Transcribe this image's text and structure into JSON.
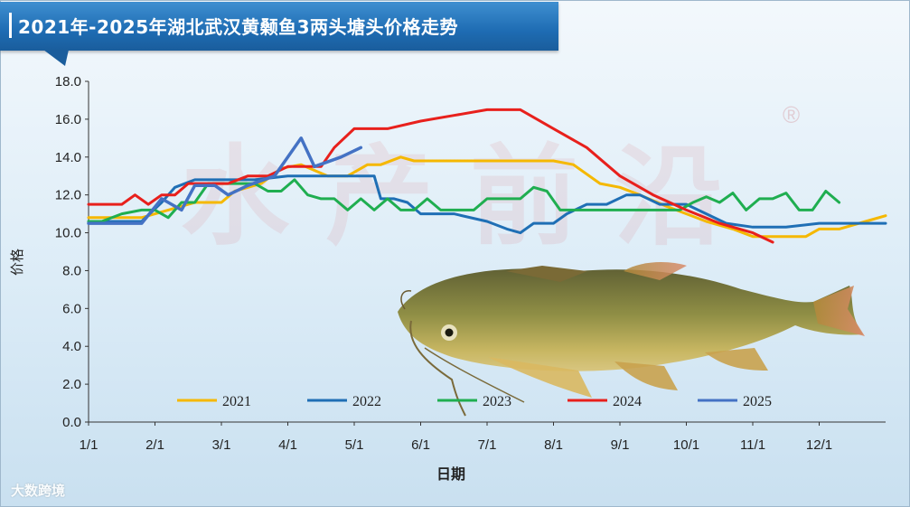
{
  "title": "2021年-2025年湖北武汉黄颡鱼3两头塘头价格走势",
  "watermark": {
    "text": "水产前沿",
    "mark": "®"
  },
  "footer_logo": "大数跨境",
  "chart_data": {
    "type": "line",
    "xlabel": "日期",
    "ylabel": "价格",
    "ylim": [
      0,
      18
    ],
    "yticks": [
      "0.0",
      "2.0",
      "4.0",
      "6.0",
      "8.0",
      "10.0",
      "12.0",
      "14.0",
      "16.0",
      "18.0"
    ],
    "xlim": [
      0,
      12
    ],
    "xticks": [
      "1/1",
      "2/1",
      "3/1",
      "4/1",
      "5/1",
      "6/1",
      "7/1",
      "8/1",
      "9/1",
      "10/1",
      "11/1",
      "12/1"
    ],
    "legend_position": "bottom",
    "grid": false,
    "series": [
      {
        "name": "2021",
        "color": "#f5b800",
        "points": [
          [
            0,
            10.8
          ],
          [
            0.4,
            10.8
          ],
          [
            0.8,
            10.8
          ],
          [
            1.2,
            11.2
          ],
          [
            1.6,
            11.6
          ],
          [
            2.0,
            11.6
          ],
          [
            2.2,
            12.2
          ],
          [
            2.6,
            12.6
          ],
          [
            2.9,
            13.4
          ],
          [
            3.2,
            13.6
          ],
          [
            3.6,
            13.0
          ],
          [
            3.9,
            13.0
          ],
          [
            4.2,
            13.6
          ],
          [
            4.4,
            13.6
          ],
          [
            4.7,
            14.0
          ],
          [
            4.9,
            13.8
          ],
          [
            5.5,
            13.8
          ],
          [
            6.0,
            13.8
          ],
          [
            6.5,
            13.8
          ],
          [
            7.0,
            13.8
          ],
          [
            7.3,
            13.6
          ],
          [
            7.7,
            12.6
          ],
          [
            8.0,
            12.4
          ],
          [
            8.3,
            12.0
          ],
          [
            8.7,
            11.4
          ],
          [
            9.0,
            11.0
          ],
          [
            9.3,
            10.6
          ],
          [
            9.7,
            10.2
          ],
          [
            10.0,
            9.8
          ],
          [
            10.5,
            9.8
          ],
          [
            10.8,
            9.8
          ],
          [
            11.0,
            10.2
          ],
          [
            11.3,
            10.2
          ],
          [
            11.7,
            10.6
          ],
          [
            12.0,
            10.9
          ]
        ]
      },
      {
        "name": "2022",
        "color": "#1f6fb5",
        "points": [
          [
            0,
            10.6
          ],
          [
            0.3,
            10.6
          ],
          [
            0.8,
            10.6
          ],
          [
            1.1,
            11.6
          ],
          [
            1.3,
            12.4
          ],
          [
            1.6,
            12.8
          ],
          [
            2.0,
            12.8
          ],
          [
            2.5,
            12.8
          ],
          [
            3.0,
            13.0
          ],
          [
            3.5,
            13.0
          ],
          [
            4.0,
            13.0
          ],
          [
            4.3,
            13.0
          ],
          [
            4.4,
            11.8
          ],
          [
            4.6,
            11.8
          ],
          [
            4.8,
            11.6
          ],
          [
            5.0,
            11.0
          ],
          [
            5.5,
            11.0
          ],
          [
            6.0,
            10.6
          ],
          [
            6.3,
            10.2
          ],
          [
            6.5,
            10.0
          ],
          [
            6.7,
            10.5
          ],
          [
            7.0,
            10.5
          ],
          [
            7.2,
            11.0
          ],
          [
            7.5,
            11.5
          ],
          [
            7.8,
            11.5
          ],
          [
            8.1,
            12.0
          ],
          [
            8.3,
            12.0
          ],
          [
            8.6,
            11.5
          ],
          [
            9.0,
            11.5
          ],
          [
            9.3,
            11.0
          ],
          [
            9.6,
            10.5
          ],
          [
            10.0,
            10.3
          ],
          [
            10.5,
            10.3
          ],
          [
            11.0,
            10.5
          ],
          [
            11.5,
            10.5
          ],
          [
            12.0,
            10.5
          ]
        ]
      },
      {
        "name": "2023",
        "color": "#1fae50",
        "points": [
          [
            0,
            10.6
          ],
          [
            0.2,
            10.6
          ],
          [
            0.5,
            11.0
          ],
          [
            0.8,
            11.2
          ],
          [
            1.0,
            11.2
          ],
          [
            1.2,
            10.8
          ],
          [
            1.4,
            11.6
          ],
          [
            1.6,
            11.6
          ],
          [
            1.8,
            12.6
          ],
          [
            2.0,
            12.6
          ],
          [
            2.3,
            12.6
          ],
          [
            2.5,
            12.6
          ],
          [
            2.7,
            12.2
          ],
          [
            2.9,
            12.2
          ],
          [
            3.1,
            12.8
          ],
          [
            3.3,
            12.0
          ],
          [
            3.5,
            11.8
          ],
          [
            3.7,
            11.8
          ],
          [
            3.9,
            11.2
          ],
          [
            4.1,
            11.8
          ],
          [
            4.3,
            11.2
          ],
          [
            4.5,
            11.8
          ],
          [
            4.7,
            11.2
          ],
          [
            4.9,
            11.2
          ],
          [
            5.1,
            11.8
          ],
          [
            5.3,
            11.2
          ],
          [
            5.5,
            11.2
          ],
          [
            5.8,
            11.2
          ],
          [
            6.0,
            11.8
          ],
          [
            6.3,
            11.8
          ],
          [
            6.5,
            11.8
          ],
          [
            6.7,
            12.4
          ],
          [
            6.9,
            12.2
          ],
          [
            7.1,
            11.2
          ],
          [
            7.4,
            11.2
          ],
          [
            7.7,
            11.2
          ],
          [
            8.0,
            11.2
          ],
          [
            8.3,
            11.2
          ],
          [
            8.6,
            11.2
          ],
          [
            8.9,
            11.2
          ],
          [
            9.1,
            11.6
          ],
          [
            9.3,
            11.9
          ],
          [
            9.5,
            11.6
          ],
          [
            9.7,
            12.1
          ],
          [
            9.9,
            11.2
          ],
          [
            10.1,
            11.8
          ],
          [
            10.3,
            11.8
          ],
          [
            10.5,
            12.1
          ],
          [
            10.7,
            11.2
          ],
          [
            10.9,
            11.2
          ],
          [
            11.1,
            12.2
          ],
          [
            11.3,
            11.6
          ]
        ]
      },
      {
        "name": "2024",
        "color": "#e8201c",
        "points": [
          [
            0,
            11.5
          ],
          [
            0.5,
            11.5
          ],
          [
            0.7,
            12.0
          ],
          [
            0.9,
            11.5
          ],
          [
            1.1,
            12.0
          ],
          [
            1.3,
            12.0
          ],
          [
            1.5,
            12.6
          ],
          [
            1.8,
            12.6
          ],
          [
            2.1,
            12.6
          ],
          [
            2.4,
            13.0
          ],
          [
            2.7,
            13.0
          ],
          [
            3.0,
            13.5
          ],
          [
            3.5,
            13.5
          ],
          [
            3.7,
            14.5
          ],
          [
            4.0,
            15.5
          ],
          [
            4.5,
            15.5
          ],
          [
            5.0,
            15.9
          ],
          [
            5.5,
            16.2
          ],
          [
            6.0,
            16.5
          ],
          [
            6.5,
            16.5
          ],
          [
            7.0,
            15.5
          ],
          [
            7.5,
            14.5
          ],
          [
            8.0,
            13.0
          ],
          [
            8.5,
            12.0
          ],
          [
            9.0,
            11.2
          ],
          [
            9.5,
            10.5
          ],
          [
            10.0,
            10.0
          ],
          [
            10.3,
            9.5
          ]
        ]
      },
      {
        "name": "2025",
        "color": "#4472c4",
        "points": [
          [
            0,
            10.5
          ],
          [
            0.5,
            10.5
          ],
          [
            0.8,
            10.5
          ],
          [
            1.1,
            11.8
          ],
          [
            1.4,
            11.2
          ],
          [
            1.6,
            12.5
          ],
          [
            1.9,
            12.5
          ],
          [
            2.1,
            12.0
          ],
          [
            2.4,
            12.5
          ],
          [
            2.8,
            13.0
          ],
          [
            3.0,
            14.0
          ],
          [
            3.2,
            15.0
          ],
          [
            3.4,
            13.5
          ],
          [
            3.8,
            14.0
          ],
          [
            4.1,
            14.5
          ]
        ]
      }
    ]
  }
}
